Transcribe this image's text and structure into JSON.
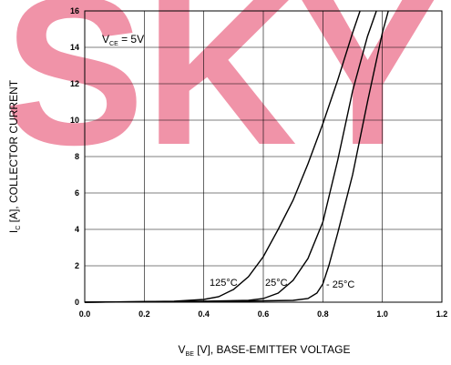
{
  "chart_data": {
    "type": "line",
    "watermark": "SKY",
    "annotation": {
      "main": "V",
      "sub": "CE",
      "rest": " = 5V"
    },
    "xlabel": {
      "main": "V",
      "sub": "BE",
      "rest": " [V], BASE-EMITTER VOLTAGE"
    },
    "ylabel": {
      "main": "I",
      "sub": "C",
      "rest": " [A], COLLECTOR CURRENT"
    },
    "xlim": [
      0,
      1.2
    ],
    "xticks": [
      {
        "value": 0,
        "label": "0.0"
      },
      0.2,
      0.4,
      0.6,
      0.8,
      {
        "value": 1,
        "label": "1.0"
      },
      1.2
    ],
    "ylim": [
      0,
      16
    ],
    "yticks": [
      0,
      2,
      4,
      6,
      8,
      10,
      12,
      14,
      16
    ],
    "grid": true,
    "series": [
      {
        "name": "125°C",
        "color": "#000000",
        "x": [
          0,
          0.3,
          0.4,
          0.45,
          0.5,
          0.55,
          0.6,
          0.65,
          0.7,
          0.75,
          0.8,
          0.85,
          0.9,
          0.925
        ],
        "values": [
          0,
          0.05,
          0.15,
          0.3,
          0.7,
          1.4,
          2.5,
          4,
          5.6,
          7.6,
          9.8,
          12.2,
          14.8,
          16
        ]
      },
      {
        "name": "25°C",
        "color": "#000000",
        "x": [
          0,
          0.4,
          0.55,
          0.6,
          0.65,
          0.7,
          0.75,
          0.8,
          0.85,
          0.9,
          0.95,
          0.98
        ],
        "values": [
          0,
          0.05,
          0.1,
          0.2,
          0.5,
          1.2,
          2.4,
          4.4,
          7.8,
          11.6,
          14.6,
          16
        ]
      },
      {
        "name": "- 25°C",
        "color": "#000000",
        "x": [
          0,
          0.5,
          0.7,
          0.75,
          0.78,
          0.8,
          0.82,
          0.85,
          0.9,
          0.95,
          1.0,
          1.02
        ],
        "values": [
          0,
          0.05,
          0.1,
          0.2,
          0.5,
          1.0,
          2.0,
          3.8,
          7.0,
          11,
          14.8,
          16
        ]
      }
    ]
  }
}
